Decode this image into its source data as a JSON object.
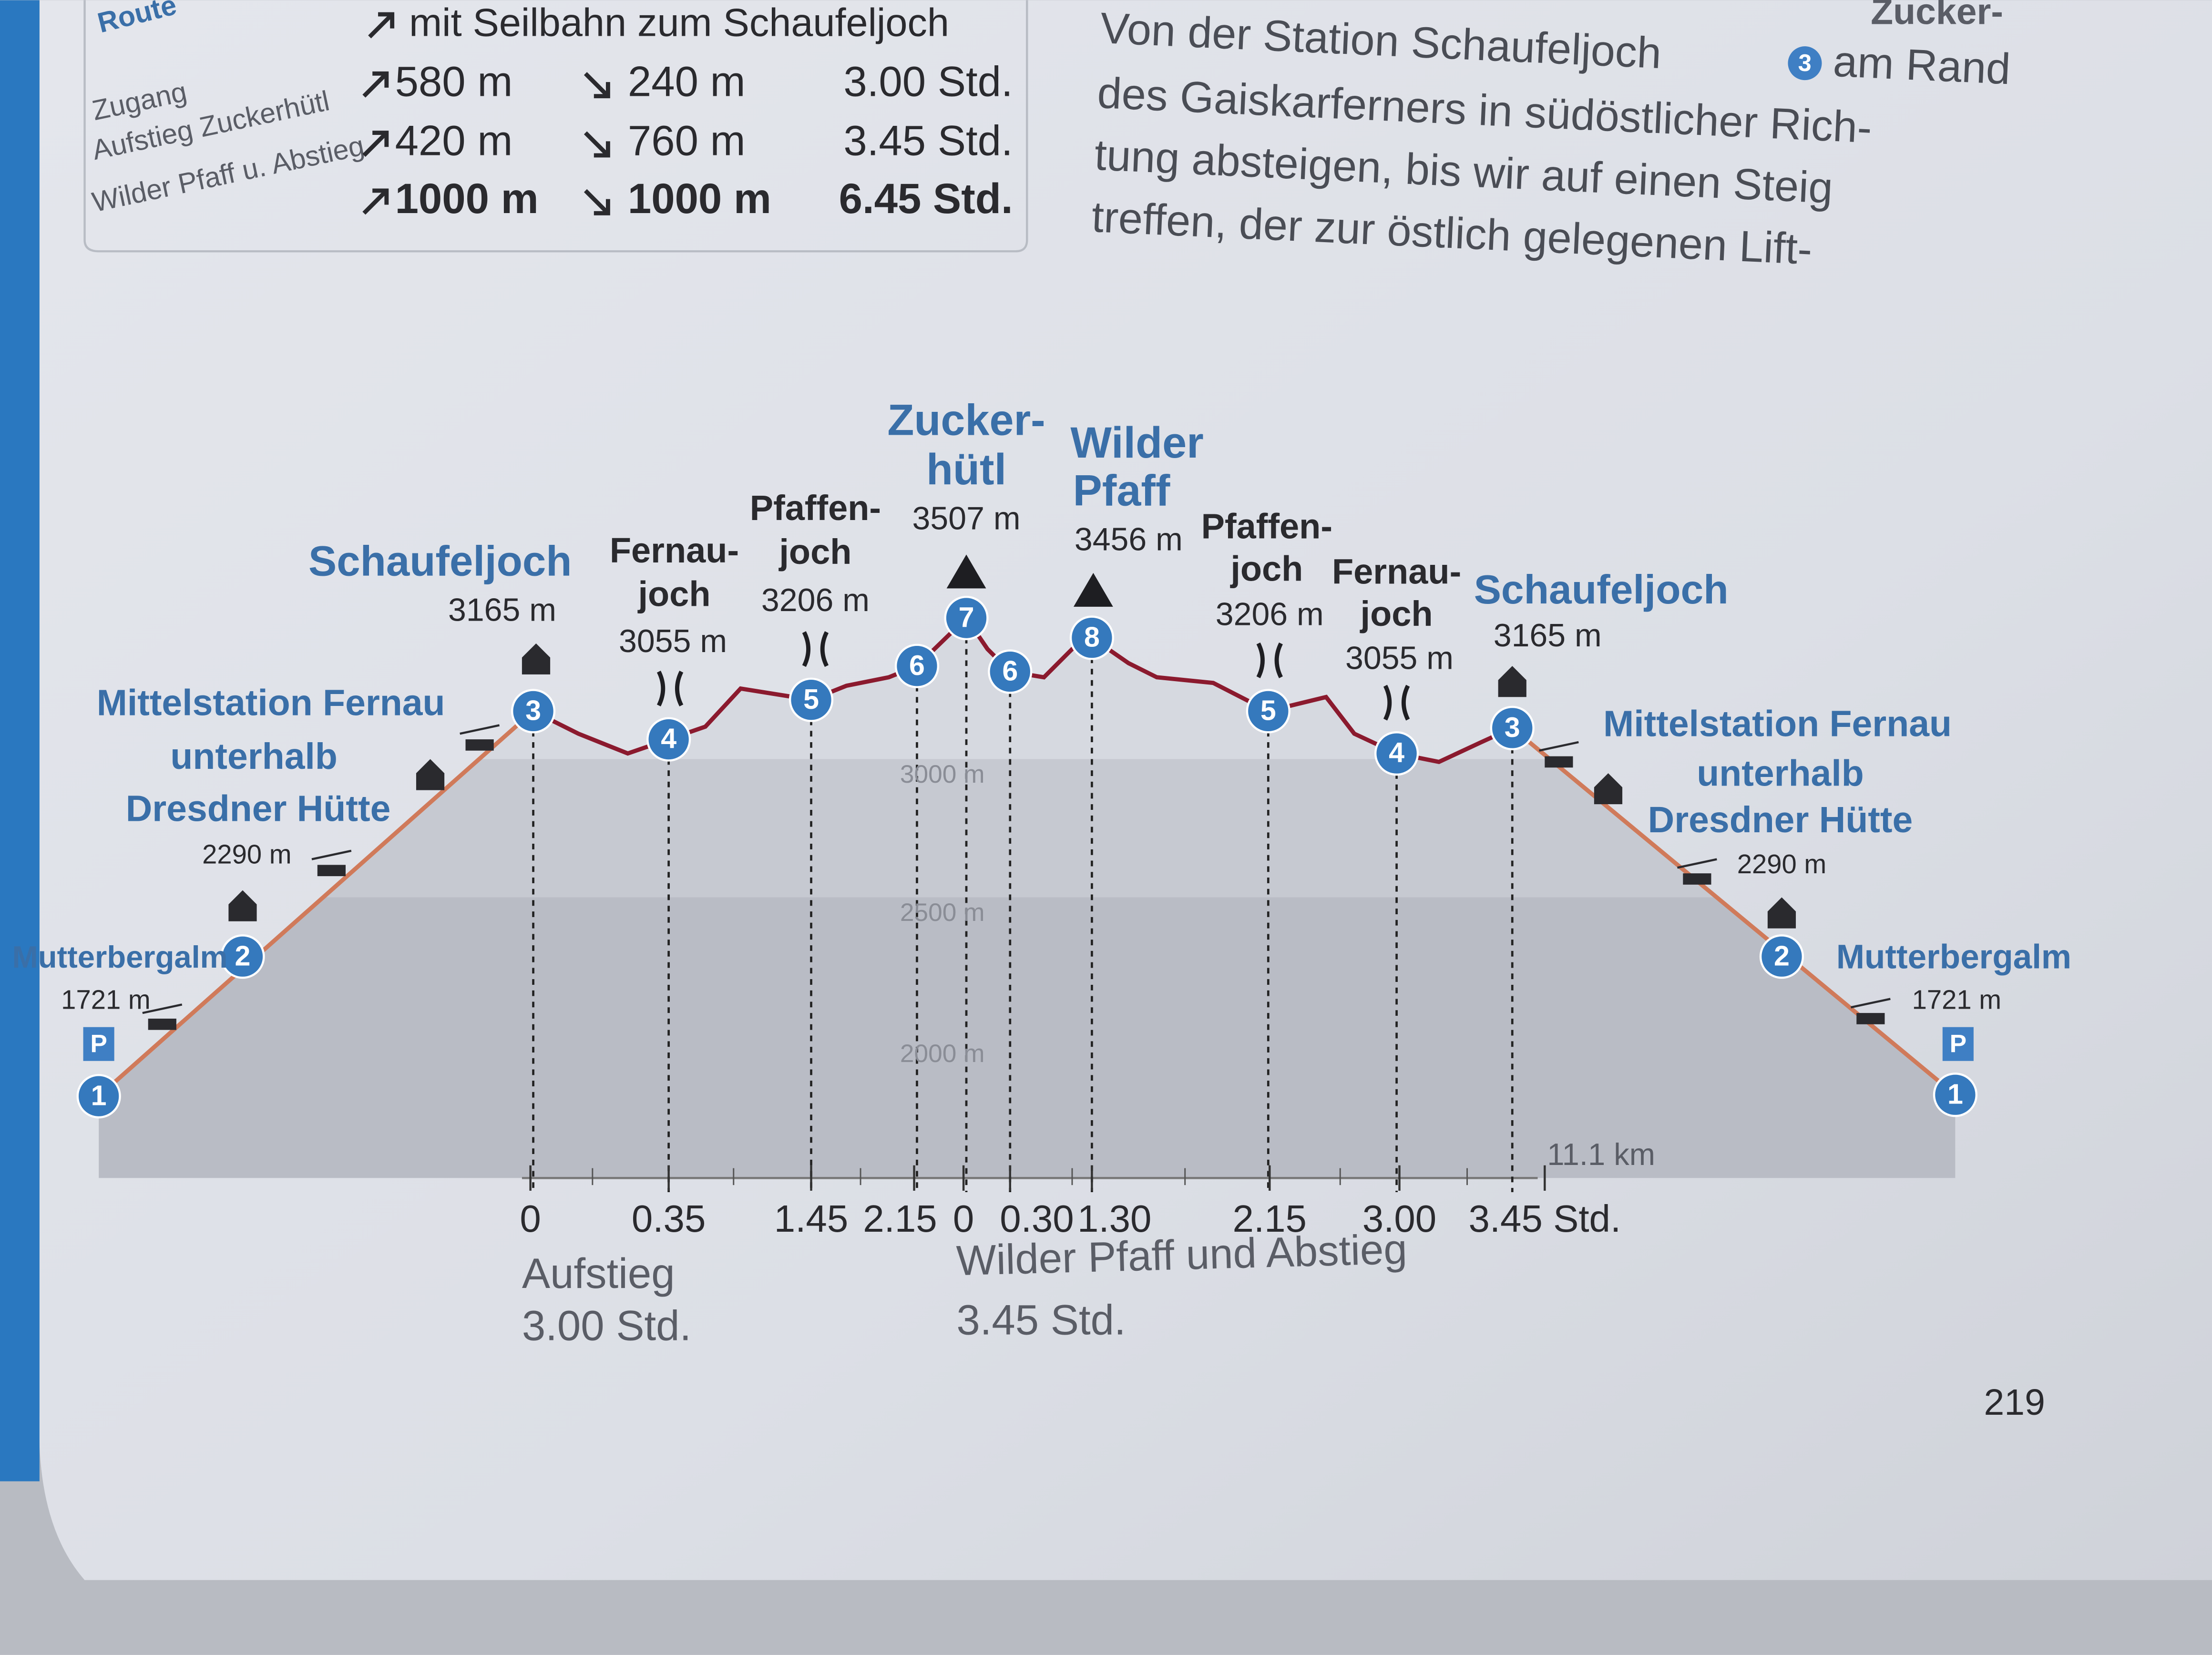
{
  "header": {
    "section": "Route",
    "corner": "Zucker-"
  },
  "table": {
    "title": "mit Seilbahn zum Schaufeljoch",
    "labels": [
      "Zugang",
      "Aufstieg Zuckerhütl",
      "Wilder Pfaff u. Abstieg"
    ],
    "rows": [
      [
        "580 m",
        "240 m",
        "3.00 Std."
      ],
      [
        "420 m",
        "760 m",
        "3.45 Std."
      ],
      [
        "1000 m",
        "1000 m",
        "6.45 Std."
      ]
    ]
  },
  "text": {
    "lines": [
      "Von der Station Schaufeljoch",
      "am Rand",
      "des Gaiskarferners in südöstlicher Rich-",
      "tung absteigen, bis wir auf einen Steig",
      "treffen, der zur östlich gelegenen Lift-"
    ],
    "marker": "3"
  },
  "profile": {
    "places": [
      {
        "lines": [
          "Mutterbergalm"
        ],
        "elevation": "1721 m"
      },
      {
        "lines": [
          "Mittelstation Fernau",
          "unterhalb",
          "Dresdner Hütte"
        ],
        "elevation": "2290 m"
      },
      {
        "lines": [
          "Schaufeljoch"
        ],
        "elevation": "3165 m"
      },
      {
        "lines": [
          "Fernau-",
          "joch"
        ],
        "elevation": "3055 m"
      },
      {
        "lines": [
          "Pfaffen-",
          "joch"
        ],
        "elevation": "3206 m"
      },
      {
        "lines": [
          "Zucker-",
          "hütl"
        ],
        "elevation": "3507 m"
      },
      {
        "lines": [
          "Wilder",
          "Pfaff"
        ],
        "elevation": "3456 m"
      },
      {
        "lines": [
          "Pfaffen-",
          "joch"
        ],
        "elevation": "3206 m"
      },
      {
        "lines": [
          "Fernau-",
          "joch"
        ],
        "elevation": "3055 m"
      },
      {
        "lines": [
          "Schaufeljoch"
        ],
        "elevation": "3165 m"
      },
      {
        "lines": [
          "Mittelstation Fernau",
          "unterhalb",
          "Dresdner Hütte"
        ],
        "elevation": "2290 m"
      },
      {
        "lines": [
          "Mutterbergalm"
        ],
        "elevation": "1721 m"
      }
    ],
    "markers": [
      "1",
      "2",
      "3",
      "4",
      "5",
      "6",
      "7",
      "6",
      "8",
      "5",
      "4",
      "3",
      "2",
      "1"
    ],
    "parking": "P",
    "elevation_labels": [
      "3000 m",
      "2500 m",
      "2000 m"
    ],
    "times": [
      "0",
      "0.35",
      "1.45",
      "2.15",
      "0",
      "0.30",
      "1.30",
      "2.15",
      "3.00",
      "3.45 Std."
    ],
    "distance": "11.1 km",
    "captions": [
      "Aufstieg",
      "3.00 Std.",
      "Wilder Pfaff und Abstieg",
      "3.45 Std."
    ]
  },
  "page_number": "219"
}
